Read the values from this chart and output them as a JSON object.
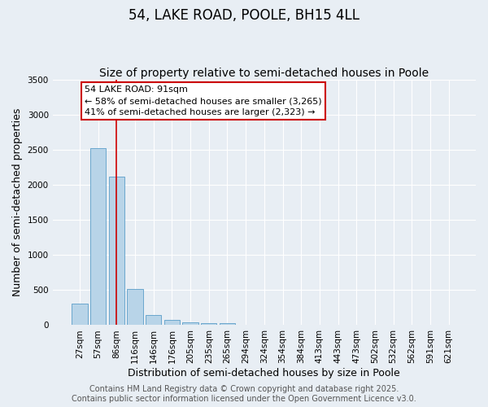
{
  "title": "54, LAKE ROAD, POOLE, BH15 4LL",
  "subtitle": "Size of property relative to semi-detached houses in Poole",
  "xlabel": "Distribution of semi-detached houses by size in Poole",
  "ylabel": "Number of semi-detached properties",
  "bins": [
    "27sqm",
    "57sqm",
    "86sqm",
    "116sqm",
    "146sqm",
    "176sqm",
    "205sqm",
    "235sqm",
    "265sqm",
    "294sqm",
    "324sqm",
    "354sqm",
    "384sqm",
    "413sqm",
    "443sqm",
    "473sqm",
    "502sqm",
    "532sqm",
    "562sqm",
    "591sqm",
    "621sqm"
  ],
  "values": [
    305,
    2530,
    2120,
    520,
    150,
    70,
    40,
    30,
    30,
    0,
    0,
    0,
    0,
    0,
    0,
    0,
    0,
    0,
    0,
    0,
    0
  ],
  "bar_color": "#b8d4e8",
  "bar_edge_color": "#5a9ec8",
  "highlight_bin_index": 2,
  "highlight_line_color": "#cc0000",
  "ylim": [
    0,
    3500
  ],
  "yticks": [
    0,
    500,
    1000,
    1500,
    2000,
    2500,
    3000,
    3500
  ],
  "annotation_title": "54 LAKE ROAD: 91sqm",
  "annotation_line1": "← 58% of semi-detached houses are smaller (3,265)",
  "annotation_line2": "41% of semi-detached houses are larger (2,323) →",
  "annotation_box_color": "#ffffff",
  "annotation_box_edge_color": "#cc0000",
  "footer_line1": "Contains HM Land Registry data © Crown copyright and database right 2025.",
  "footer_line2": "Contains public sector information licensed under the Open Government Licence v3.0.",
  "background_color": "#e8eef4",
  "grid_color": "#ffffff",
  "title_fontsize": 12,
  "subtitle_fontsize": 10,
  "axis_label_fontsize": 9,
  "tick_fontsize": 7.5,
  "annotation_fontsize": 8,
  "footer_fontsize": 7
}
